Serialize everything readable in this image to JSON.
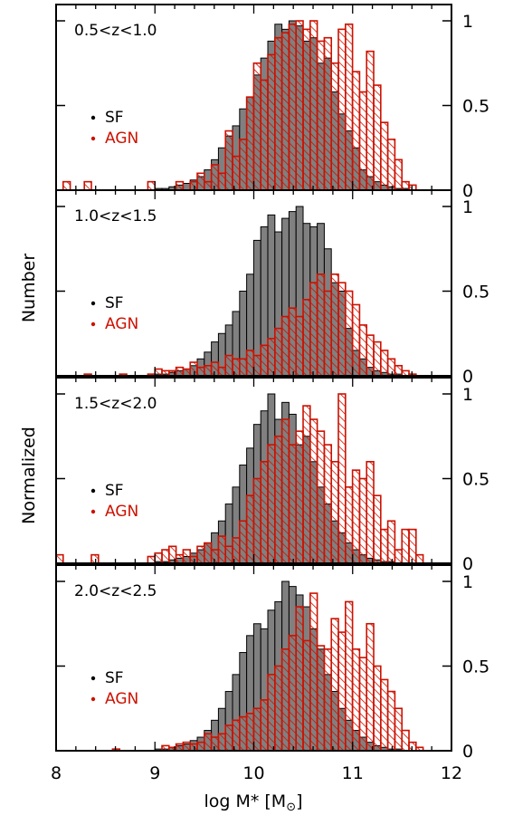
{
  "chart_data": {
    "type": "bar",
    "xlabel": "log M* [M",
    "xlabel_sun": "⊙",
    "xlabel_close": "]",
    "ylabel": [
      "Normalized",
      "Number"
    ],
    "xlim": [
      8,
      12
    ],
    "xticks": [
      "8",
      "9",
      "10",
      "11",
      "12"
    ],
    "ylim": [
      0,
      1.05
    ],
    "yticks": [
      "0",
      "0.5",
      "1"
    ],
    "bin_start": 8.0,
    "bin_width": 0.0714,
    "colors": {
      "sf_fill": "#808080",
      "sf_edge": "#000000",
      "agn": "#cc1100"
    },
    "legend": [
      {
        "label": "SF",
        "color": "#000000"
      },
      {
        "label": "AGN",
        "color": "#cc1100"
      }
    ],
    "panels": [
      {
        "label": "0.5<z<1.0",
        "sf": [
          0,
          0,
          0,
          0,
          0,
          0,
          0,
          0,
          0,
          0,
          0,
          0,
          0,
          0,
          0.01,
          0.01,
          0.02,
          0.03,
          0.04,
          0.06,
          0.08,
          0.12,
          0.18,
          0.25,
          0.32,
          0.38,
          0.48,
          0.55,
          0.68,
          0.78,
          0.88,
          0.98,
          0.95,
          1.0,
          0.97,
          0.88,
          0.9,
          0.75,
          0.78,
          0.58,
          0.45,
          0.35,
          0.25,
          0.12,
          0.08,
          0.05,
          0.03,
          0.02,
          0.01,
          0.01,
          0,
          0,
          0,
          0,
          0,
          0
        ],
        "agn": [
          0,
          0.05,
          0,
          0,
          0.05,
          0,
          0,
          0,
          0,
          0,
          0,
          0,
          0,
          0.05,
          0,
          0,
          0,
          0.05,
          0,
          0.05,
          0.1,
          0.05,
          0.15,
          0.1,
          0.35,
          0.2,
          0.3,
          0.55,
          0.75,
          0.65,
          0.8,
          0.9,
          0.93,
          0.98,
          1.0,
          0.95,
          1.0,
          0.88,
          0.9,
          0.75,
          0.95,
          0.98,
          0.7,
          0.58,
          0.82,
          0.62,
          0.4,
          0.3,
          0.18,
          0.05,
          0.03,
          0,
          0,
          0,
          0,
          0
        ]
      },
      {
        "label": "1.0<z<1.5",
        "sf": [
          0,
          0,
          0,
          0,
          0,
          0,
          0,
          0,
          0,
          0,
          0,
          0,
          0,
          0,
          0.01,
          0.01,
          0.02,
          0.03,
          0.04,
          0.06,
          0.1,
          0.14,
          0.2,
          0.25,
          0.3,
          0.38,
          0.5,
          0.6,
          0.8,
          0.88,
          0.95,
          0.85,
          0.93,
          0.97,
          1.0,
          0.9,
          0.88,
          0.9,
          0.75,
          0.55,
          0.5,
          0.28,
          0.15,
          0.1,
          0.05,
          0.03,
          0.02,
          0.01,
          0.01,
          0,
          0,
          0,
          0,
          0,
          0,
          0
        ],
        "agn": [
          0,
          0,
          0,
          0,
          0.01,
          0,
          0,
          0,
          0,
          0.01,
          0,
          0,
          0,
          0.01,
          0.04,
          0.03,
          0.03,
          0.05,
          0.04,
          0.08,
          0.05,
          0.06,
          0.08,
          0.05,
          0.12,
          0.1,
          0.1,
          0.15,
          0.12,
          0.18,
          0.22,
          0.28,
          0.35,
          0.4,
          0.35,
          0.45,
          0.55,
          0.6,
          0.5,
          0.6,
          0.55,
          0.5,
          0.42,
          0.3,
          0.24,
          0.2,
          0.15,
          0.1,
          0.06,
          0.03,
          0.01,
          0,
          0,
          0,
          0,
          0
        ]
      },
      {
        "label": "1.5<z<2.0",
        "sf": [
          0,
          0,
          0,
          0,
          0,
          0,
          0,
          0,
          0,
          0,
          0,
          0,
          0,
          0,
          0.01,
          0.01,
          0.02,
          0.03,
          0.04,
          0.06,
          0.08,
          0.12,
          0.18,
          0.25,
          0.35,
          0.45,
          0.58,
          0.68,
          0.82,
          0.9,
          1.0,
          0.85,
          0.95,
          0.88,
          0.7,
          0.75,
          0.6,
          0.45,
          0.35,
          0.25,
          0.18,
          0.12,
          0.08,
          0.05,
          0.03,
          0.02,
          0.01,
          0.01,
          0,
          0,
          0,
          0,
          0,
          0,
          0,
          0
        ],
        "agn": [
          0.05,
          0,
          0,
          0,
          0,
          0.05,
          0,
          0,
          0,
          0,
          0,
          0,
          0,
          0.04,
          0.06,
          0.08,
          0.1,
          0.05,
          0.08,
          0.04,
          0.1,
          0.12,
          0.08,
          0.16,
          0.1,
          0.15,
          0.25,
          0.4,
          0.5,
          0.6,
          0.7,
          0.75,
          0.85,
          0.7,
          0.78,
          0.93,
          0.85,
          0.78,
          0.7,
          0.6,
          1.0,
          0.45,
          0.55,
          0.5,
          0.6,
          0.4,
          0.2,
          0.25,
          0.08,
          0.2,
          0.2,
          0.05,
          0,
          0,
          0,
          0
        ]
      },
      {
        "label": "2.0<z<2.5",
        "sf": [
          0,
          0,
          0,
          0,
          0,
          0,
          0,
          0,
          0,
          0,
          0,
          0,
          0,
          0,
          0.01,
          0.01,
          0.02,
          0.03,
          0.04,
          0.06,
          0.08,
          0.12,
          0.18,
          0.25,
          0.35,
          0.45,
          0.58,
          0.68,
          0.75,
          0.72,
          0.83,
          0.88,
          1.0,
          0.97,
          0.92,
          0.85,
          0.72,
          0.6,
          0.45,
          0.35,
          0.25,
          0.18,
          0.12,
          0.08,
          0.05,
          0.03,
          0.02,
          0.01,
          0.01,
          0,
          0,
          0,
          0,
          0,
          0,
          0
        ],
        "agn": [
          0,
          0,
          0,
          0,
          0,
          0,
          0,
          0,
          0.01,
          0,
          0,
          0,
          0,
          0,
          0,
          0.03,
          0.02,
          0.04,
          0.05,
          0.04,
          0.05,
          0.1,
          0.08,
          0.1,
          0.15,
          0.18,
          0.2,
          0.22,
          0.25,
          0.3,
          0.45,
          0.5,
          0.6,
          0.68,
          0.85,
          0.65,
          0.93,
          0.62,
          0.6,
          0.78,
          0.7,
          0.88,
          0.6,
          0.55,
          0.75,
          0.5,
          0.42,
          0.35,
          0.25,
          0.12,
          0.05,
          0.02,
          0,
          0,
          0,
          0
        ]
      }
    ]
  }
}
